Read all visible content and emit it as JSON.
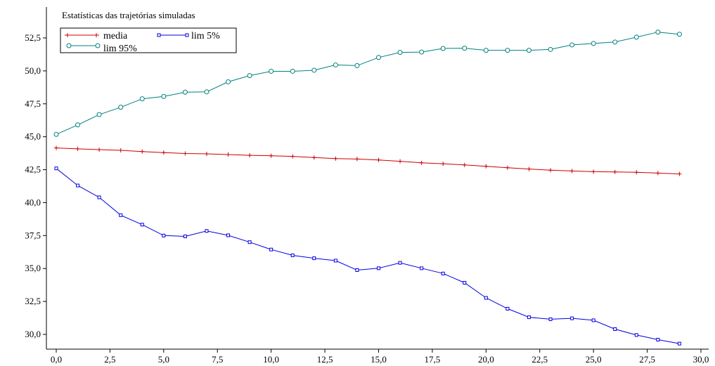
{
  "chart_data": {
    "type": "line",
    "title": "Estatísticas das trajetórias simuladas",
    "xlabel": "",
    "ylabel": "",
    "xlim": [
      -0.5,
      30.0
    ],
    "ylim": [
      29.2,
      53.2
    ],
    "x_ticks": [
      0,
      2.5,
      5,
      7.5,
      10,
      12.5,
      15,
      17.5,
      20,
      22.5,
      25,
      27.5,
      30
    ],
    "x_tick_labels": [
      "0,0",
      "2,5",
      "5,0",
      "7,5",
      "10,0",
      "12,5",
      "15,0",
      "17,5",
      "20,0",
      "22,5",
      "25,0",
      "27,5",
      "30,0"
    ],
    "y_ticks": [
      30,
      32.5,
      35,
      37.5,
      40,
      42.5,
      45,
      47.5,
      50,
      52.5
    ],
    "y_tick_labels": [
      "30,0",
      "32,5",
      "35,0",
      "37,5",
      "40,0",
      "42,5",
      "45,0",
      "47,5",
      "50,0",
      "52,5"
    ],
    "grid": false,
    "legend_position": "top-left",
    "x": [
      0,
      1,
      2,
      3,
      4,
      5,
      6,
      7,
      8,
      9,
      10,
      11,
      12,
      13,
      14,
      15,
      16,
      17,
      18,
      19,
      20,
      21,
      22,
      23,
      24,
      25,
      26,
      27,
      28,
      29
    ],
    "series": [
      {
        "name": "media",
        "color": "#cc0000",
        "marker": "plus",
        "values": [
          44.15,
          44.08,
          44.02,
          43.97,
          43.88,
          43.8,
          43.73,
          43.7,
          43.65,
          43.59,
          43.56,
          43.51,
          43.42,
          43.34,
          43.31,
          43.24,
          43.14,
          43.02,
          42.95,
          42.86,
          42.76,
          42.65,
          42.55,
          42.46,
          42.4,
          42.35,
          42.33,
          42.3,
          42.24,
          42.18
        ]
      },
      {
        "name": "lim 5%",
        "color": "#0000e0",
        "marker": "square",
        "values": [
          42.6,
          41.3,
          40.4,
          39.05,
          38.33,
          37.5,
          37.44,
          37.85,
          37.52,
          37.0,
          36.44,
          36.0,
          35.78,
          35.6,
          34.88,
          35.02,
          35.43,
          35.02,
          34.62,
          33.92,
          32.77,
          31.95,
          31.3,
          31.15,
          31.22,
          31.07,
          30.4,
          29.95,
          29.6,
          29.3
        ]
      },
      {
        "name": "lim 95%",
        "color": "#008080",
        "marker": "circle",
        "values": [
          45.18,
          45.9,
          46.68,
          47.24,
          47.88,
          48.06,
          48.38,
          48.41,
          49.17,
          49.64,
          49.97,
          49.97,
          50.05,
          50.45,
          50.4,
          51.02,
          51.4,
          51.43,
          51.7,
          51.72,
          51.56,
          51.56,
          51.56,
          51.63,
          51.97,
          52.08,
          52.19,
          52.56,
          52.94,
          52.78
        ]
      }
    ]
  }
}
